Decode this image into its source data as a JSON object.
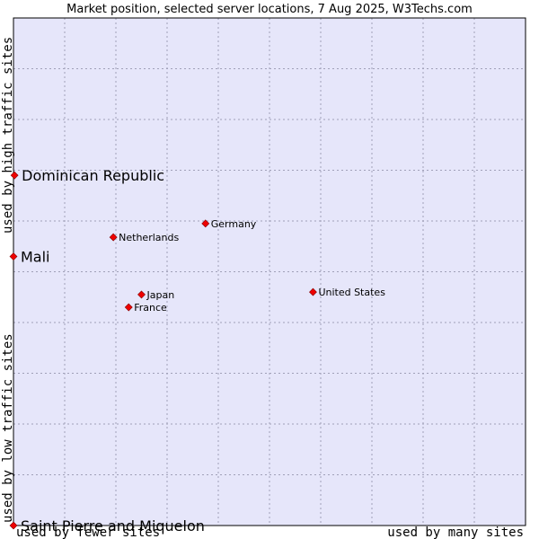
{
  "chart_data": {
    "type": "scatter",
    "title": "Market position, selected server locations, 7 Aug 2025, W3Techs.com",
    "xlabel_left": "used by fewer sites",
    "xlabel_right": "used by many sites",
    "ylabel_bottom": "used by low traffic sites",
    "ylabel_top": "used by high traffic sites",
    "grid": true,
    "xlim": [
      0,
      10
    ],
    "ylim": [
      0,
      10
    ],
    "colors": {
      "plot_background": "#e6e6fa",
      "grid": "#a0a0b8",
      "marker": "#ee0000"
    },
    "points": [
      {
        "label": "Dominican Republic",
        "x": 0.02,
        "y": 6.9,
        "emphasis": true
      },
      {
        "label": "Mali",
        "x": 0.0,
        "y": 5.3,
        "emphasis": true
      },
      {
        "label": "Saint Pierre and Miquelon",
        "x": 0.0,
        "y": 0.0,
        "emphasis": true
      },
      {
        "label": "Germany",
        "x": 3.75,
        "y": 5.95,
        "emphasis": false
      },
      {
        "label": "Netherlands",
        "x": 1.95,
        "y": 5.68,
        "emphasis": false
      },
      {
        "label": "United States",
        "x": 5.85,
        "y": 4.6,
        "emphasis": false
      },
      {
        "label": "Japan",
        "x": 2.5,
        "y": 4.55,
        "emphasis": false
      },
      {
        "label": "France",
        "x": 2.25,
        "y": 4.3,
        "emphasis": false
      }
    ]
  }
}
